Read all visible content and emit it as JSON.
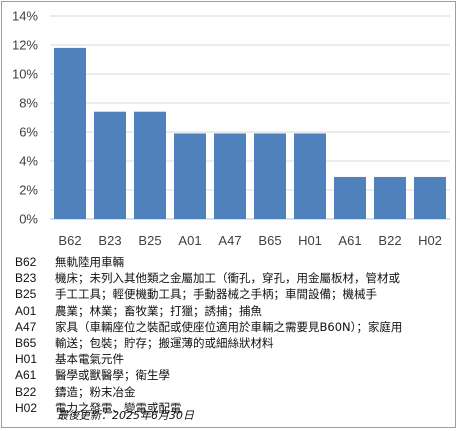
{
  "chart_data": {
    "type": "bar",
    "categories": [
      "B62",
      "B23",
      "B25",
      "A01",
      "A47",
      "B65",
      "H01",
      "A61",
      "B22",
      "H02"
    ],
    "values": [
      11.8,
      7.4,
      7.4,
      5.9,
      5.9,
      5.9,
      5.9,
      2.9,
      2.9,
      2.9
    ],
    "y_ticks": [
      "0%",
      "2%",
      "4%",
      "6%",
      "8%",
      "10%",
      "12%",
      "14%"
    ],
    "ylim": [
      0,
      14
    ],
    "y_unit": "%",
    "grid": true,
    "bar_color": "#4f81bd"
  },
  "legend": [
    {
      "code": "B62",
      "desc": "無軌陸用車輛"
    },
    {
      "code": "B23",
      "desc": "機床；未列入其他類之金屬加工（衝孔，穿孔，用金屬板材，管材或"
    },
    {
      "code": "B25",
      "desc": "手工工具；輕便機動工具；手動器械之手柄；車間設備；機械手"
    },
    {
      "code": "A01",
      "desc": "農業；林業；畜牧業；打獵；誘捕；捕魚"
    },
    {
      "code": "A47",
      "desc": "家具（車輛座位之裝配或使座位適用於車輛之需要見B60N）；家庭用"
    },
    {
      "code": "B65",
      "desc": "輸送；包裝；貯存；搬運薄的或細絲狀材料"
    },
    {
      "code": "H01",
      "desc": "基本電氣元件"
    },
    {
      "code": "A61",
      "desc": "醫學或獸醫學；衛生學"
    },
    {
      "code": "B22",
      "desc": "鑄造；粉末冶金"
    },
    {
      "code": "H02",
      "desc": "電力之發電、變電或配電"
    }
  ],
  "footer": {
    "updated": "最後更新：2025年6月30日"
  }
}
